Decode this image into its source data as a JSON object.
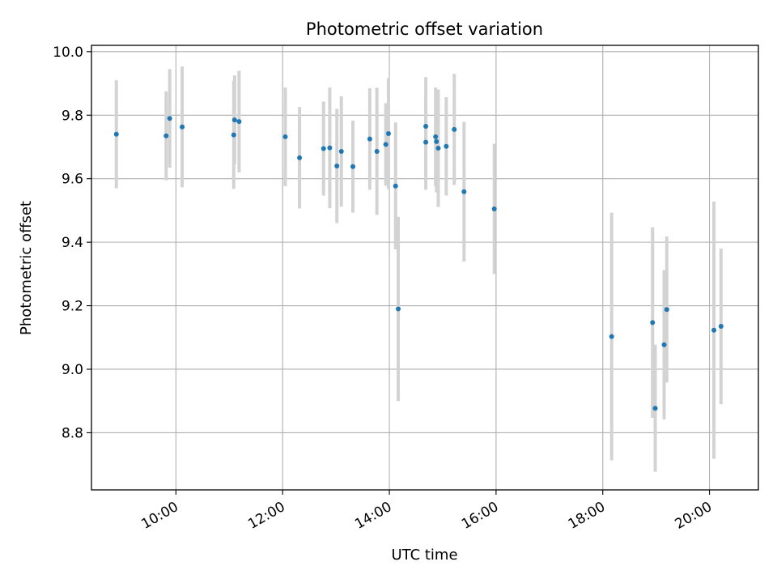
{
  "chart_data": {
    "type": "scatter",
    "title": "Photometric offset variation",
    "xlabel": "UTC time",
    "ylabel": "Photometric offset",
    "x_ticks": [
      "10:00",
      "12:00",
      "14:00",
      "16:00",
      "18:00",
      "20:00"
    ],
    "y_ticks": [
      "8.8",
      "9.0",
      "9.2",
      "9.4",
      "9.6",
      "9.8",
      "10.0"
    ],
    "xlim": [
      "08:25",
      "20:55"
    ],
    "ylim": [
      8.62,
      10.02
    ],
    "grid": true,
    "point_color": "#1f77b4",
    "errorbar_color": "#d3d3d3",
    "points": [
      {
        "x": "08:53",
        "y": 9.74,
        "err": 0.17
      },
      {
        "x": "09:49",
        "y": 9.735,
        "err": 0.14
      },
      {
        "x": "09:53",
        "y": 9.79,
        "err": 0.155
      },
      {
        "x": "10:07",
        "y": 9.763,
        "err": 0.19
      },
      {
        "x": "11:05",
        "y": 9.738,
        "err": 0.17
      },
      {
        "x": "11:06",
        "y": 9.785,
        "err": 0.14
      },
      {
        "x": "11:11",
        "y": 9.78,
        "err": 0.16
      },
      {
        "x": "12:03",
        "y": 9.732,
        "err": 0.155
      },
      {
        "x": "12:19",
        "y": 9.666,
        "err": 0.16
      },
      {
        "x": "12:46",
        "y": 9.695,
        "err": 0.148
      },
      {
        "x": "12:53",
        "y": 9.697,
        "err": 0.19
      },
      {
        "x": "13:01",
        "y": 9.64,
        "err": 0.18
      },
      {
        "x": "13:06",
        "y": 9.686,
        "err": 0.174
      },
      {
        "x": "13:19",
        "y": 9.638,
        "err": 0.145
      },
      {
        "x": "13:38",
        "y": 9.725,
        "err": 0.16
      },
      {
        "x": "13:46",
        "y": 9.686,
        "err": 0.2
      },
      {
        "x": "13:56",
        "y": 9.708,
        "err": 0.13
      },
      {
        "x": "13:59",
        "y": 9.742,
        "err": 0.175
      },
      {
        "x": "14:07",
        "y": 9.577,
        "err": 0.2
      },
      {
        "x": "14:10",
        "y": 9.19,
        "err": 0.29
      },
      {
        "x": "14:41",
        "y": 9.765,
        "err": 0.155
      },
      {
        "x": "14:41",
        "y": 9.715,
        "err": 0.15
      },
      {
        "x": "14:52",
        "y": 9.732,
        "err": 0.155
      },
      {
        "x": "14:53",
        "y": 9.717,
        "err": 0.16
      },
      {
        "x": "14:55",
        "y": 9.696,
        "err": 0.185
      },
      {
        "x": "15:04",
        "y": 9.702,
        "err": 0.155
      },
      {
        "x": "15:13",
        "y": 9.755,
        "err": 0.175
      },
      {
        "x": "15:24",
        "y": 9.559,
        "err": 0.22
      },
      {
        "x": "15:58",
        "y": 9.505,
        "err": 0.205
      },
      {
        "x": "18:10",
        "y": 9.103,
        "err": 0.39
      },
      {
        "x": "18:56",
        "y": 9.147,
        "err": 0.3
      },
      {
        "x": "18:59",
        "y": 8.877,
        "err": 0.2
      },
      {
        "x": "19:09",
        "y": 9.077,
        "err": 0.235
      },
      {
        "x": "19:12",
        "y": 9.188,
        "err": 0.23
      },
      {
        "x": "20:05",
        "y": 9.123,
        "err": 0.405
      },
      {
        "x": "20:13",
        "y": 9.135,
        "err": 0.245
      }
    ]
  }
}
